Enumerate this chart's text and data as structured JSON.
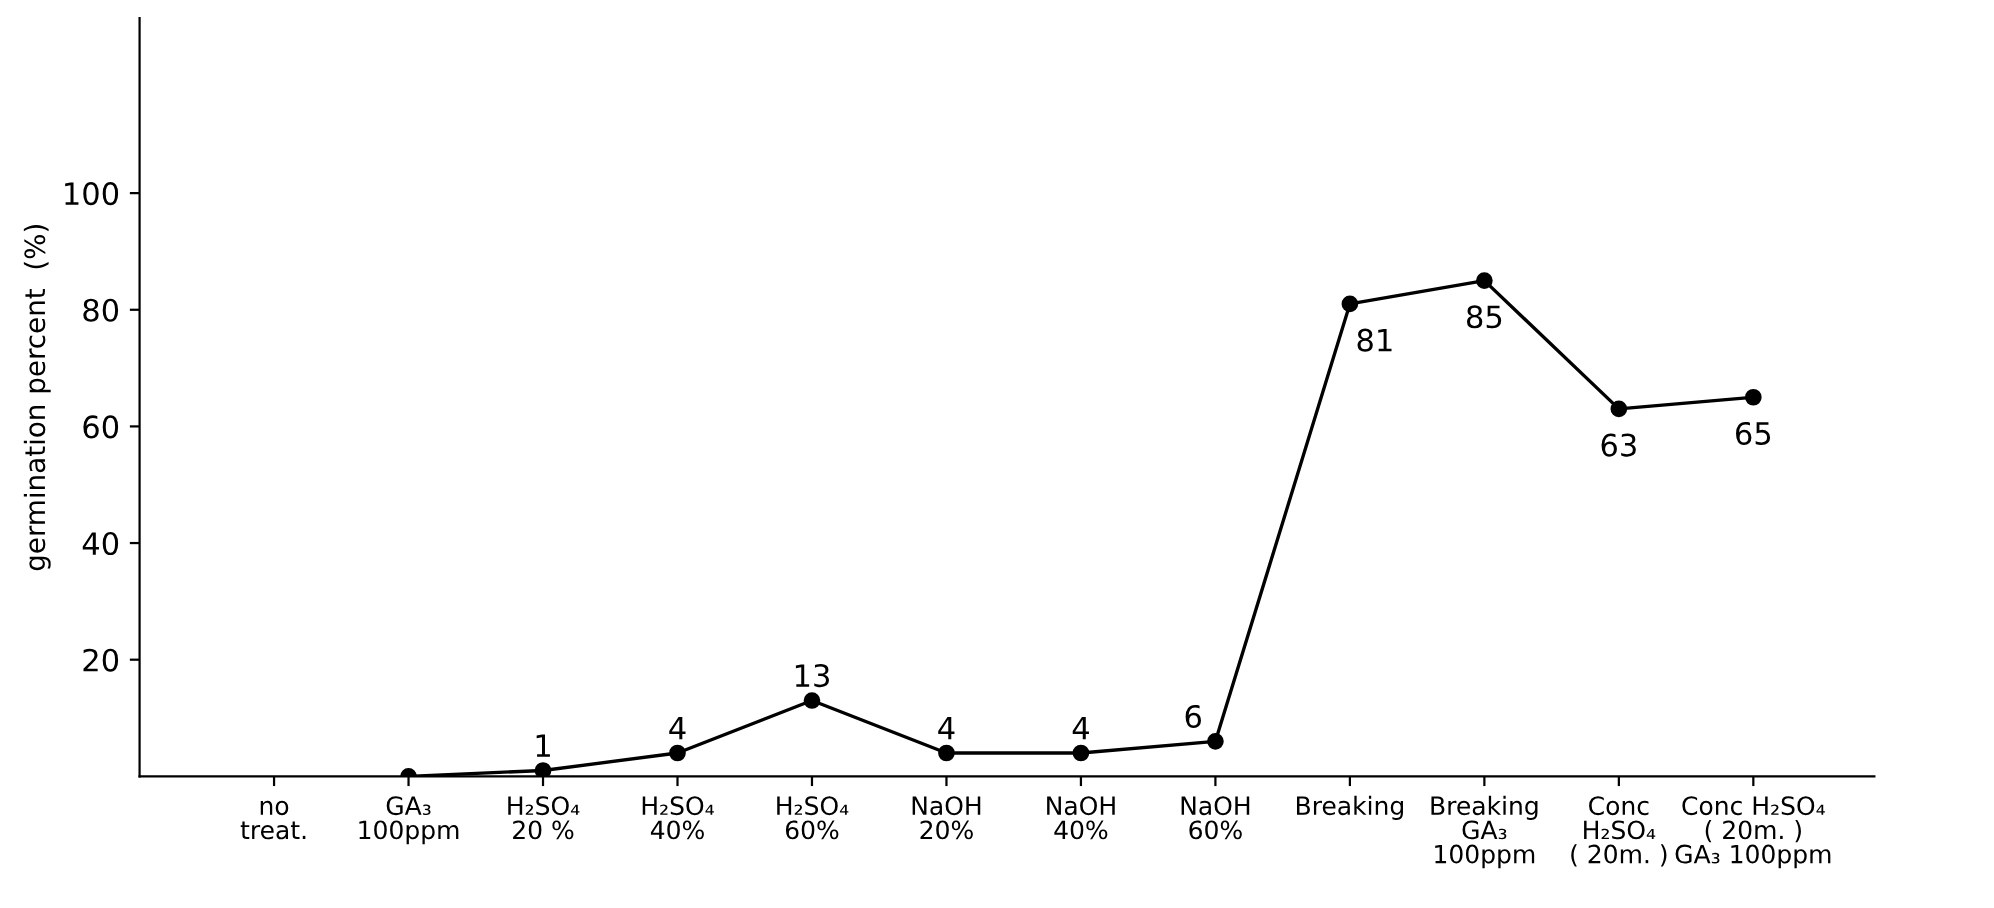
{
  "chart_data": {
    "type": "line",
    "ylabel": "germination percent  (%)",
    "categories": [
      "no\ntreat.",
      "GA₃\n100ppm",
      "H₂SO₄\n20 %",
      "H₂SO₄\n40%",
      "H₂SO₄\n60%",
      "NaOH\n20%",
      "NaOH\n40%",
      "NaOH\n60%",
      "Breaking",
      "Breaking\nGA₃\n100ppm",
      "Conc\nH₂SO₄\n( 20m. )",
      "Conc H₂SO₄\n( 20m. )\nGA₃ 100ppm"
    ],
    "series": [
      {
        "color": "#000000",
        "values": [
          null,
          0,
          1,
          4,
          13,
          4,
          4,
          6,
          81,
          85,
          63,
          65
        ],
        "value_labels": [
          null,
          null,
          "1",
          "4",
          "13",
          "4",
          "4",
          "6",
          "81",
          "85",
          "63",
          "65"
        ]
      }
    ],
    "ylim": [
      0,
      130
    ],
    "yticks": [
      20,
      40,
      60,
      80,
      100
    ],
    "grid": false,
    "legend": false,
    "marker": "circle",
    "line_style": "solid"
  }
}
